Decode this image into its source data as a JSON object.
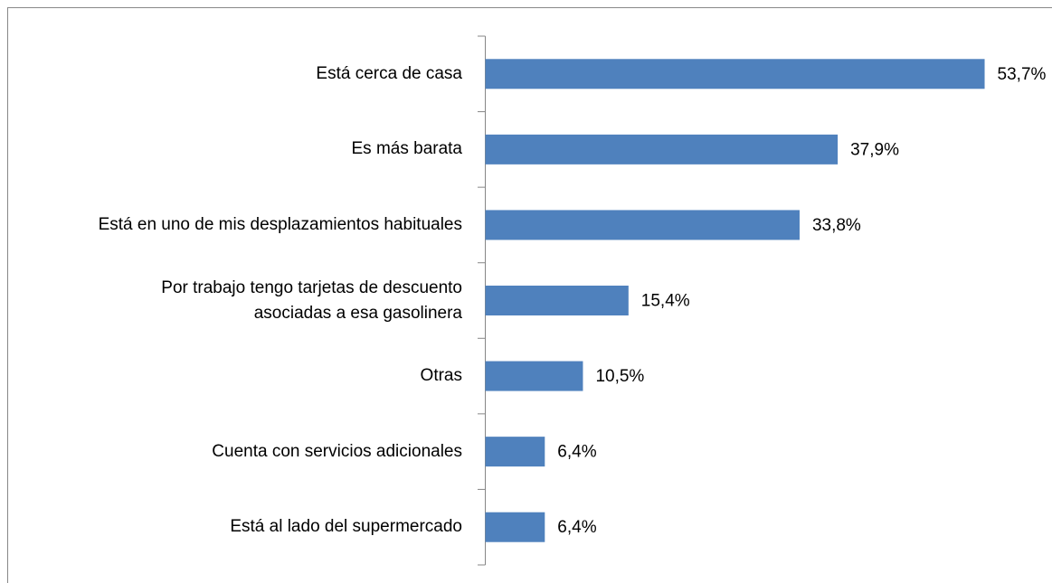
{
  "chart_data": {
    "type": "bar",
    "orientation": "horizontal",
    "categories": [
      "Está cerca de casa",
      "Es más barata",
      "Está en uno de mis desplazamientos habituales",
      "Por trabajo tengo tarjetas de descuento\nasociadas a esa gasolinera",
      "Otras",
      "Cuenta con servicios adicionales",
      "Está al lado del supermercado"
    ],
    "values": [
      53.7,
      37.9,
      33.8,
      15.4,
      10.5,
      6.4,
      6.4
    ],
    "value_labels": [
      "53,7%",
      "37,9%",
      "33,8%",
      "15,4%",
      "10,5%",
      "6,4%",
      "6,4%"
    ],
    "color": "#4f81bd"
  }
}
